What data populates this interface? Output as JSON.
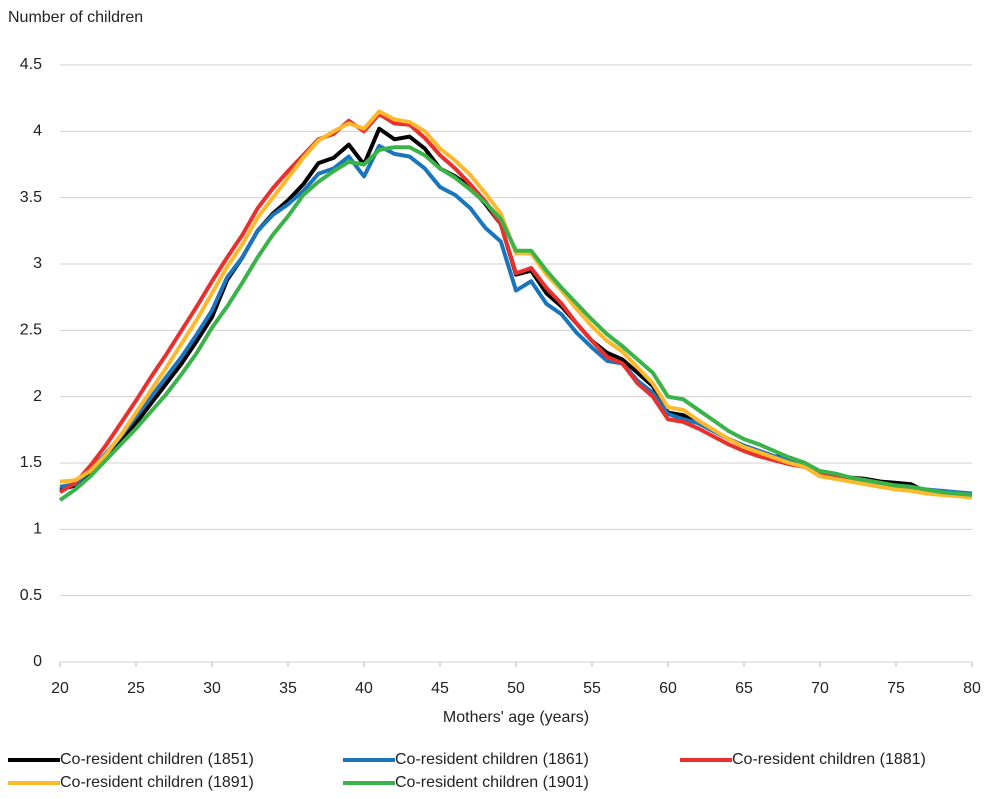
{
  "chart_data": {
    "type": "line",
    "y_axis_label": "Number of children",
    "x_axis_label": "Mothers' age (years)",
    "x": [
      20,
      21,
      22,
      23,
      24,
      25,
      26,
      27,
      28,
      29,
      30,
      31,
      32,
      33,
      34,
      35,
      36,
      37,
      38,
      39,
      40,
      41,
      42,
      43,
      44,
      45,
      46,
      47,
      48,
      49,
      50,
      51,
      52,
      53,
      54,
      55,
      56,
      57,
      58,
      59,
      60,
      61,
      62,
      63,
      64,
      65,
      66,
      67,
      68,
      69,
      70,
      71,
      72,
      73,
      74,
      75,
      76,
      77,
      78,
      79,
      80
    ],
    "xlim": [
      20,
      80
    ],
    "xticks": [
      20,
      25,
      30,
      35,
      40,
      45,
      50,
      55,
      60,
      65,
      70,
      75,
      80
    ],
    "ylim": [
      0,
      4.5
    ],
    "yticks": [
      0,
      0.5,
      1,
      1.5,
      2,
      2.5,
      3,
      3.5,
      4,
      4.5
    ],
    "grid": true,
    "legend": "bottom",
    "series": [
      {
        "name": "Co-resident children (1851)",
        "color": "#000000",
        "values": [
          1.3,
          1.33,
          1.42,
          1.53,
          1.66,
          1.8,
          1.95,
          2.1,
          2.25,
          2.42,
          2.6,
          2.88,
          3.05,
          3.25,
          3.38,
          3.48,
          3.6,
          3.76,
          3.8,
          3.9,
          3.75,
          4.02,
          3.94,
          3.96,
          3.87,
          3.72,
          3.66,
          3.58,
          3.45,
          3.3,
          2.92,
          2.95,
          2.78,
          2.68,
          2.55,
          2.42,
          2.33,
          2.28,
          2.18,
          2.08,
          1.88,
          1.86,
          1.8,
          1.74,
          1.68,
          1.63,
          1.59,
          1.55,
          1.54,
          1.5,
          1.43,
          1.41,
          1.39,
          1.38,
          1.36,
          1.35,
          1.34,
          1.28,
          1.29,
          1.27,
          1.27
        ]
      },
      {
        "name": "Co-resident children (1861)",
        "color": "#1a75bc",
        "values": [
          1.32,
          1.34,
          1.45,
          1.57,
          1.7,
          1.85,
          2.0,
          2.15,
          2.3,
          2.47,
          2.65,
          2.9,
          3.05,
          3.25,
          3.37,
          3.45,
          3.55,
          3.68,
          3.72,
          3.81,
          3.66,
          3.89,
          3.83,
          3.81,
          3.72,
          3.58,
          3.52,
          3.42,
          3.27,
          3.17,
          2.8,
          2.87,
          2.7,
          2.62,
          2.48,
          2.37,
          2.27,
          2.25,
          2.12,
          2.03,
          1.87,
          1.83,
          1.8,
          1.74,
          1.68,
          1.63,
          1.59,
          1.55,
          1.52,
          1.49,
          1.43,
          1.4,
          1.38,
          1.37,
          1.34,
          1.33,
          1.32,
          1.3,
          1.29,
          1.28,
          1.27
        ]
      },
      {
        "name": "Co-resident children (1881)",
        "color": "#e8312f",
        "values": [
          1.28,
          1.35,
          1.48,
          1.63,
          1.8,
          1.97,
          2.15,
          2.32,
          2.5,
          2.68,
          2.87,
          3.05,
          3.22,
          3.42,
          3.57,
          3.7,
          3.82,
          3.94,
          3.98,
          4.08,
          4.0,
          4.13,
          4.06,
          4.05,
          3.95,
          3.82,
          3.72,
          3.6,
          3.47,
          3.3,
          2.93,
          2.97,
          2.82,
          2.7,
          2.55,
          2.42,
          2.3,
          2.25,
          2.1,
          2.0,
          1.83,
          1.81,
          1.76,
          1.7,
          1.64,
          1.59,
          1.55,
          1.52,
          1.49,
          1.47,
          1.41,
          1.39,
          1.37,
          1.35,
          1.33,
          1.32,
          1.31,
          1.28,
          1.27,
          1.26,
          1.25
        ]
      },
      {
        "name": "Co-resident children (1891)",
        "color": "#fdb92e",
        "values": [
          1.36,
          1.37,
          1.44,
          1.56,
          1.71,
          1.88,
          2.05,
          2.22,
          2.4,
          2.58,
          2.78,
          2.98,
          3.15,
          3.35,
          3.5,
          3.65,
          3.8,
          3.93,
          4.0,
          4.06,
          4.02,
          4.15,
          4.09,
          4.07,
          4.0,
          3.87,
          3.78,
          3.67,
          3.53,
          3.38,
          3.08,
          3.08,
          2.92,
          2.8,
          2.66,
          2.53,
          2.42,
          2.34,
          2.22,
          2.1,
          1.92,
          1.9,
          1.82,
          1.75,
          1.68,
          1.62,
          1.58,
          1.54,
          1.5,
          1.47,
          1.4,
          1.38,
          1.36,
          1.34,
          1.32,
          1.3,
          1.29,
          1.27,
          1.26,
          1.25,
          1.24
        ]
      },
      {
        "name": "Co-resident children (1901)",
        "color": "#3cb34a",
        "values": [
          1.22,
          1.3,
          1.4,
          1.52,
          1.64,
          1.76,
          1.89,
          2.02,
          2.17,
          2.33,
          2.52,
          2.68,
          2.86,
          3.05,
          3.22,
          3.36,
          3.52,
          3.62,
          3.7,
          3.77,
          3.75,
          3.86,
          3.88,
          3.88,
          3.82,
          3.72,
          3.65,
          3.56,
          3.46,
          3.34,
          3.1,
          3.1,
          2.95,
          2.82,
          2.7,
          2.58,
          2.47,
          2.38,
          2.28,
          2.18,
          2.0,
          1.98,
          1.9,
          1.82,
          1.74,
          1.68,
          1.64,
          1.59,
          1.54,
          1.5,
          1.44,
          1.42,
          1.39,
          1.37,
          1.35,
          1.33,
          1.32,
          1.3,
          1.28,
          1.27,
          1.26
        ]
      }
    ]
  }
}
